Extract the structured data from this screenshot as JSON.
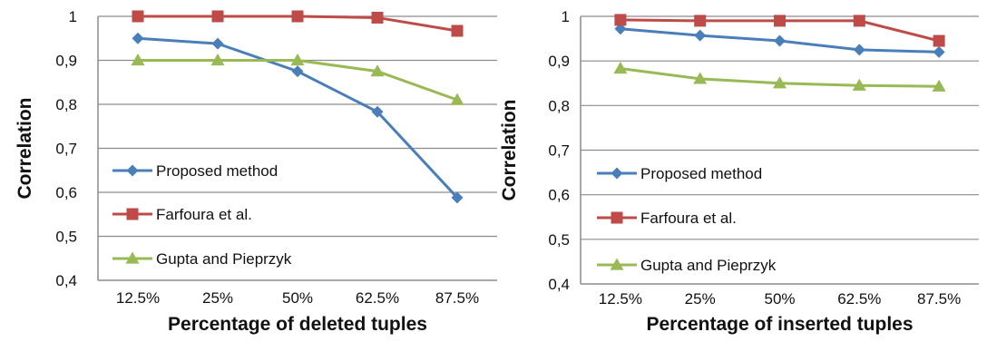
{
  "colors": {
    "proposed": "#4a7ebb",
    "farfoura": "#be4b48",
    "gupta": "#98b954",
    "grid": "#8c8c8c",
    "axis": "#8c8c8c"
  },
  "chart_data": [
    {
      "type": "line",
      "categories": [
        "12.5%",
        "25%",
        "50%",
        "62.5%",
        "87.5%"
      ],
      "xlabel": "Percentage of deleted tuples",
      "ylabel": "Correlation",
      "ylim": [
        0.4,
        1.0
      ],
      "yticks": [
        "0,4",
        "0,5",
        "0,6",
        "0,7",
        "0,8",
        "0,9",
        "1"
      ],
      "grid": true,
      "legend_position": "left",
      "series": [
        {
          "name": "Proposed method",
          "marker": "diamond",
          "color_key": "proposed",
          "values": [
            0.95,
            0.938,
            0.875,
            0.783,
            0.588
          ]
        },
        {
          "name": "Farfoura et al.",
          "marker": "square",
          "color_key": "farfoura",
          "values": [
            1.0,
            1.0,
            1.0,
            0.997,
            0.967
          ]
        },
        {
          "name": "Gupta and Pieprzyk",
          "marker": "triangle",
          "color_key": "gupta",
          "values": [
            0.9,
            0.9,
            0.9,
            0.875,
            0.81
          ]
        }
      ]
    },
    {
      "type": "line",
      "categories": [
        "12.5%",
        "25%",
        "50%",
        "62.5%",
        "87.5%"
      ],
      "xlabel": "Percentage of inserted tuples",
      "ylabel": "Correlation",
      "ylim": [
        0.4,
        1.0
      ],
      "yticks": [
        "0,4",
        "0,5",
        "0,6",
        "0,7",
        "0,8",
        "0,9",
        "1"
      ],
      "grid": true,
      "legend_position": "left",
      "series": [
        {
          "name": "Proposed method",
          "marker": "diamond",
          "color_key": "proposed",
          "values": [
            0.972,
            0.957,
            0.945,
            0.925,
            0.92
          ]
        },
        {
          "name": "Farfoura et al.",
          "marker": "square",
          "color_key": "farfoura",
          "values": [
            0.992,
            0.99,
            0.99,
            0.99,
            0.945
          ]
        },
        {
          "name": "Gupta and Pieprzyk",
          "marker": "triangle",
          "color_key": "gupta",
          "values": [
            0.883,
            0.86,
            0.85,
            0.845,
            0.843
          ]
        }
      ]
    }
  ]
}
